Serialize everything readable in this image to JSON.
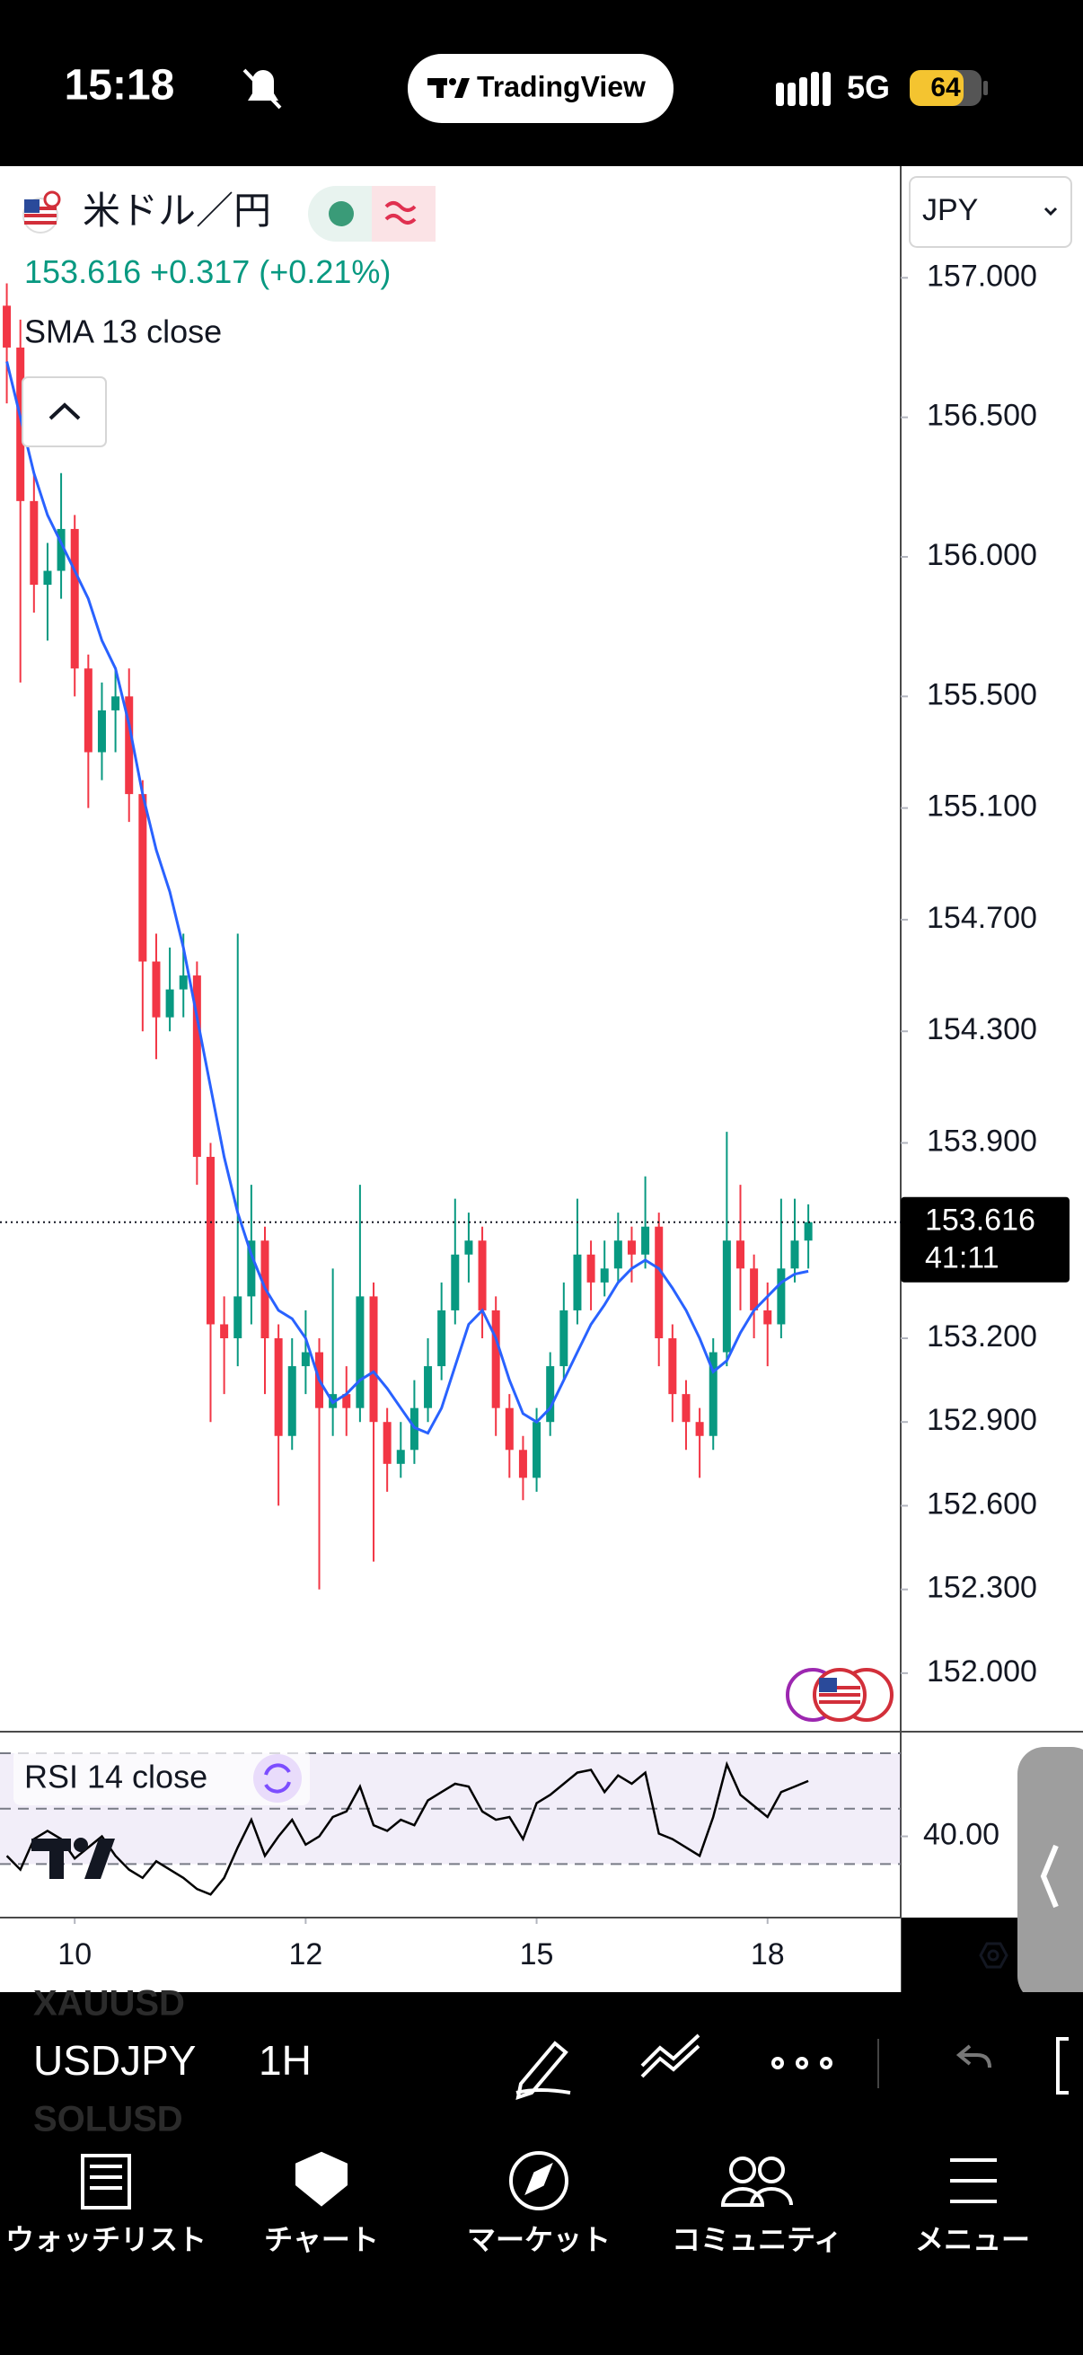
{
  "status_bar": {
    "time": "15:18",
    "app": "TradingView",
    "network": "5G",
    "battery": "64"
  },
  "header": {
    "symbol": "米ドル／円",
    "price": "153.616",
    "change": "+0.317",
    "change_pct": "(+0.21%)"
  },
  "chart_data": [
    {
      "type": "candlestick",
      "currency": "JPY",
      "open": [
        156.9,
        156.75,
        156.2,
        155.9,
        155.95,
        156.1,
        155.6,
        155.3,
        155.45,
        155.5,
        155.15,
        154.55,
        154.35,
        154.45,
        154.5,
        153.85,
        153.25,
        153.2,
        153.35,
        153.55,
        153.2,
        152.85,
        153.1,
        153.15,
        152.95,
        153.0,
        152.95,
        153.35,
        152.9,
        152.75,
        152.8,
        152.95,
        153.1,
        153.3,
        153.5,
        153.55,
        153.3,
        152.95,
        152.8,
        152.7,
        152.9,
        153.1,
        153.3,
        153.5,
        153.4,
        153.45,
        153.55,
        153.5,
        153.6,
        153.2,
        153.0,
        152.9,
        152.85,
        153.15,
        153.55,
        153.45,
        153.3,
        153.25,
        153.45,
        153.55
      ],
      "high": [
        156.98,
        156.85,
        156.3,
        156.05,
        156.3,
        156.15,
        155.65,
        155.55,
        155.6,
        155.6,
        155.2,
        154.65,
        154.6,
        154.65,
        154.55,
        153.9,
        153.35,
        154.65,
        153.75,
        153.6,
        153.25,
        153.2,
        153.3,
        153.2,
        153.45,
        153.1,
        153.75,
        153.4,
        152.95,
        152.9,
        153.05,
        153.2,
        153.4,
        153.7,
        153.65,
        153.6,
        153.35,
        153.0,
        152.85,
        152.95,
        153.15,
        153.4,
        153.7,
        153.55,
        153.55,
        153.65,
        153.6,
        153.78,
        153.65,
        153.25,
        153.05,
        152.95,
        153.2,
        153.94,
        153.75,
        153.5,
        153.4,
        153.7,
        153.7,
        153.68
      ],
      "low": [
        156.55,
        155.55,
        155.8,
        155.7,
        155.85,
        155.5,
        155.1,
        155.2,
        155.3,
        155.05,
        154.3,
        154.2,
        154.3,
        154.35,
        153.75,
        152.9,
        153.0,
        153.1,
        153.25,
        153.0,
        152.6,
        152.8,
        153.0,
        152.3,
        152.85,
        152.85,
        152.9,
        152.4,
        152.65,
        152.7,
        152.75,
        152.9,
        153.05,
        153.25,
        153.4,
        153.2,
        152.85,
        152.7,
        152.62,
        152.65,
        152.85,
        153.05,
        153.25,
        153.3,
        153.35,
        153.4,
        153.4,
        153.45,
        153.1,
        152.9,
        152.8,
        152.7,
        152.8,
        153.1,
        153.3,
        153.2,
        153.1,
        153.2,
        153.4,
        153.45
      ],
      "close": [
        156.75,
        156.2,
        155.9,
        155.95,
        156.1,
        155.6,
        155.3,
        155.45,
        155.5,
        155.15,
        154.55,
        154.35,
        154.45,
        154.5,
        153.85,
        153.25,
        153.2,
        153.35,
        153.55,
        153.2,
        152.85,
        153.1,
        153.15,
        152.95,
        153.0,
        152.95,
        153.35,
        152.9,
        152.75,
        152.8,
        152.95,
        153.1,
        153.3,
        153.5,
        153.55,
        153.3,
        152.95,
        152.8,
        152.7,
        152.9,
        153.1,
        153.3,
        153.5,
        153.4,
        153.45,
        153.55,
        153.5,
        153.6,
        153.2,
        153.0,
        152.9,
        152.85,
        153.15,
        153.55,
        153.45,
        153.3,
        153.25,
        153.45,
        153.55,
        153.616
      ],
      "up_color": "#089981",
      "down_color": "#f23645",
      "series": [
        {
          "name": "SMA 13 close",
          "color": "#2962ff",
          "values": [
            156.7,
            156.5,
            156.3,
            156.15,
            156.05,
            155.95,
            155.85,
            155.7,
            155.6,
            155.4,
            155.15,
            154.95,
            154.8,
            154.6,
            154.35,
            154.1,
            153.85,
            153.65,
            153.5,
            153.38,
            153.3,
            153.27,
            153.2,
            153.05,
            152.97,
            153.0,
            153.05,
            153.08,
            153.02,
            152.95,
            152.88,
            152.86,
            152.95,
            153.1,
            153.25,
            153.3,
            153.2,
            153.05,
            152.93,
            152.9,
            152.95,
            153.05,
            153.15,
            153.25,
            153.32,
            153.4,
            153.45,
            153.48,
            153.45,
            153.38,
            153.3,
            153.2,
            153.08,
            153.12,
            153.22,
            153.3,
            153.35,
            153.4,
            153.43,
            153.44
          ]
        }
      ],
      "last_price": 153.616,
      "countdown": "41:11",
      "xlim": [
        -0.5,
        65.8
      ],
      "xticks": [
        {
          "value": 5,
          "label": "10"
        },
        {
          "value": 22,
          "label": "12"
        },
        {
          "value": 39,
          "label": "15"
        },
        {
          "value": 56,
          "label": "18"
        }
      ],
      "ylim": [
        151.8,
        157.4
      ],
      "yticks": [
        {
          "value": 157,
          "label": "157.000"
        },
        {
          "value": 156.5,
          "label": "156.500"
        },
        {
          "value": 156,
          "label": "156.000"
        },
        {
          "value": 155.5,
          "label": "155.500"
        },
        {
          "value": 155.1,
          "label": "155.100"
        },
        {
          "value": 154.7,
          "label": "154.700"
        },
        {
          "value": 154.3,
          "label": "154.300"
        },
        {
          "value": 153.9,
          "label": "153.900"
        },
        {
          "value": 153.2,
          "label": "153.200"
        },
        {
          "value": 152.9,
          "label": "152.900"
        },
        {
          "value": 152.6,
          "label": "152.600"
        },
        {
          "value": 152.3,
          "label": "152.300"
        },
        {
          "value": 152,
          "label": "152.000"
        }
      ]
    },
    {
      "type": "line",
      "series": [
        {
          "name": "RSI 14 close",
          "color": "#000000",
          "values": [
            33,
            28,
            39,
            42,
            39,
            32,
            36,
            40,
            33,
            28,
            25,
            31,
            28,
            25,
            21,
            19,
            25,
            36,
            46,
            33,
            40,
            46,
            37,
            40,
            47,
            49,
            58,
            44,
            42,
            46,
            44,
            53,
            56,
            59,
            58,
            49,
            46,
            47,
            39,
            52,
            55,
            59,
            63,
            64,
            56,
            62,
            59,
            63,
            41,
            39,
            36,
            33,
            47,
            66,
            55,
            51,
            47,
            56,
            58,
            60
          ]
        }
      ],
      "levels": [
        30,
        50,
        70
      ],
      "band_color": "#7e57c2",
      "ylim": [
        11,
        76.5
      ],
      "yticks": [
        {
          "value": 40,
          "label": "40.00"
        }
      ]
    }
  ],
  "toolbar": {
    "symbols": [
      "XAUUSD",
      "USDJPY",
      "SOLUSD"
    ],
    "interval": "1H"
  },
  "nav": [
    "ウォッチリスト",
    "チャート",
    "マーケット",
    "コミュニティ",
    "メニュー"
  ]
}
